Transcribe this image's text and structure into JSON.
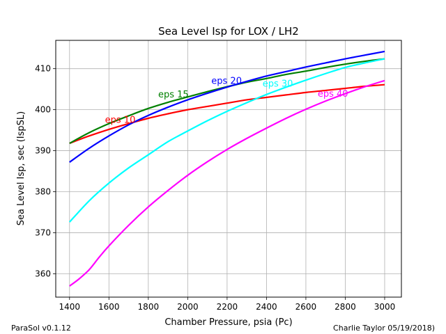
{
  "chart_data": {
    "type": "line",
    "title": "Sea Level Isp for LOX / LH2",
    "xlabel": "Chamber Pressure, psia (Pc)",
    "ylabel": "Sea Level Isp, sec (IspSL)",
    "xlim": [
      1330,
      3085
    ],
    "ylim": [
      354.3,
      416.9
    ],
    "xticks": [
      1400,
      1600,
      1800,
      2000,
      2200,
      2400,
      2600,
      2800,
      3000
    ],
    "yticks": [
      360,
      370,
      380,
      390,
      400,
      410
    ],
    "grid": true,
    "series": [
      {
        "name": "eps 10",
        "color": "#ff0000",
        "label_at": [
          1580,
          396.8
        ],
        "x": [
          1400,
          1500,
          1600,
          1700,
          1800,
          1900,
          2000,
          2100,
          2200,
          2300,
          2400,
          2500,
          2600,
          2700,
          2800,
          2900,
          3000
        ],
        "y": [
          391.8,
          393.6,
          395.2,
          396.6,
          397.9,
          399.0,
          400.0,
          400.8,
          401.6,
          402.4,
          403.0,
          403.6,
          404.2,
          404.7,
          405.2,
          405.7,
          406.1
        ]
      },
      {
        "name": "eps 15",
        "color": "#008000",
        "label_at": [
          1850,
          403.0
        ],
        "x": [
          1400,
          1500,
          1600,
          1700,
          1800,
          1900,
          2000,
          2100,
          2200,
          2300,
          2400,
          2500,
          2600,
          2700,
          2800,
          2900,
          3000
        ],
        "y": [
          391.8,
          394.4,
          396.6,
          398.5,
          400.3,
          401.8,
          403.1,
          404.4,
          405.6,
          406.7,
          407.6,
          408.6,
          409.4,
          410.3,
          411.1,
          411.8,
          412.4
        ]
      },
      {
        "name": "eps 20",
        "color": "#0000ff",
        "label_at": [
          2120,
          406.3
        ],
        "x": [
          1400,
          1500,
          1600,
          1700,
          1800,
          1900,
          2000,
          2100,
          2200,
          2300,
          2400,
          2500,
          2600,
          2700,
          2800,
          2900,
          3000
        ],
        "y": [
          387.2,
          390.6,
          393.6,
          396.3,
          398.6,
          400.6,
          402.4,
          404.0,
          405.5,
          406.9,
          408.2,
          409.3,
          410.4,
          411.4,
          412.4,
          413.3,
          414.2
        ]
      },
      {
        "name": "eps 30",
        "color": "#00ffff",
        "label_at": [
          2380,
          405.6
        ],
        "x": [
          1400,
          1500,
          1600,
          1700,
          1800,
          1900,
          2000,
          2100,
          2200,
          2300,
          2400,
          2500,
          2600,
          2700,
          2800,
          2900,
          3000
        ],
        "y": [
          372.6,
          377.8,
          382.1,
          385.8,
          389.0,
          392.2,
          394.8,
          397.3,
          399.6,
          401.7,
          403.7,
          405.5,
          407.2,
          408.8,
          410.3,
          411.4,
          412.4
        ]
      },
      {
        "name": "eps 40",
        "color": "#ff00ff",
        "label_at": [
          2660,
          403.2
        ],
        "x": [
          1400,
          1450,
          1500,
          1550,
          1600,
          1700,
          1800,
          1900,
          2000,
          2100,
          2200,
          2300,
          2400,
          2500,
          2600,
          2700,
          2800,
          2900,
          3000
        ],
        "y": [
          357.0,
          358.8,
          361.0,
          364.0,
          366.8,
          371.8,
          376.3,
          380.3,
          384.0,
          387.3,
          390.3,
          393.0,
          395.5,
          397.9,
          400.1,
          402.1,
          403.9,
          405.6,
          407.1
        ]
      }
    ]
  },
  "footer": {
    "left": "ParaSol v0.1.12",
    "right": "Charlie Taylor 05/19/2018)"
  }
}
